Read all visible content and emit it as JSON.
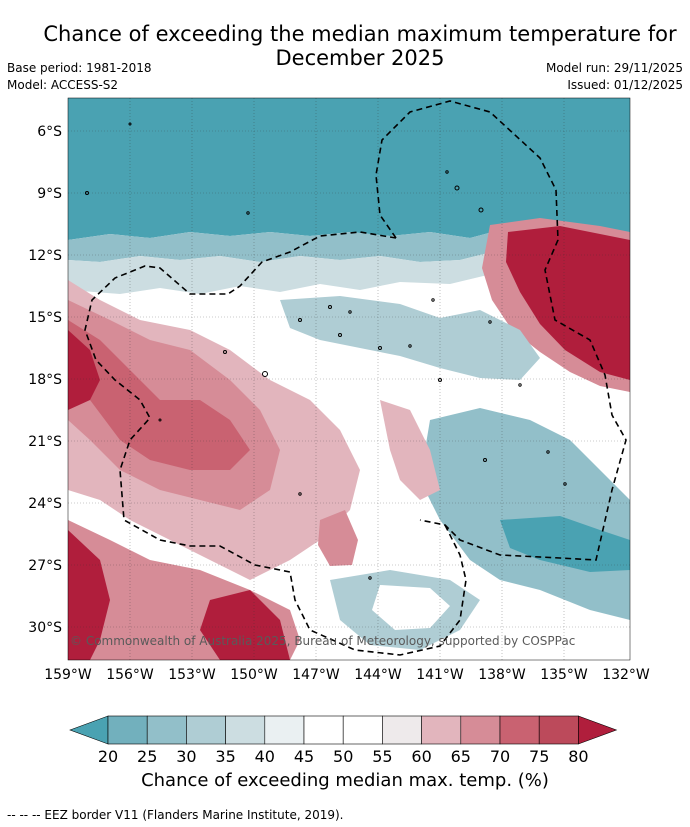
{
  "title_line1": "Chance of exceeding the median maximum temperature for",
  "title_line2": "December 2025",
  "base_period": "Base period: 1981-2018",
  "model": "Model: ACCESS-S2",
  "model_run": "Model run: 29/11/2025",
  "issued": "Issued: 01/12/2025",
  "copyright": "© Commonwealth of Australia 2025, Bureau of Meteorology, supported by COSPPac",
  "lat_labels": [
    "6°S",
    "9°S",
    "12°S",
    "15°S",
    "18°S",
    "21°S",
    "24°S",
    "27°S",
    "30°S"
  ],
  "lon_labels": [
    "159°W",
    "156°W",
    "153°W",
    "150°W",
    "147°W",
    "144°W",
    "141°W",
    "138°W",
    "135°W",
    "132°W"
  ],
  "colorbar": {
    "ticks": [
      "20",
      "25",
      "30",
      "35",
      "40",
      "45",
      "50",
      "55",
      "60",
      "65",
      "70",
      "75",
      "80"
    ],
    "colors": [
      "#4aa2b2",
      "#72b0bd",
      "#92bfc9",
      "#afcdd4",
      "#ccdde1",
      "#eaf0f2",
      "#ffffff",
      "#ffffff",
      "#eeeaeb",
      "#e2b5bd",
      "#d68c97",
      "#c96271",
      "#bc4a5b",
      "#b01e3c"
    ],
    "label": "Chance of exceeding median max. temp. (%)"
  },
  "legend_footer": "-- -- -- EEZ border V11 (Flanders Marine Institute, 2019)."
}
